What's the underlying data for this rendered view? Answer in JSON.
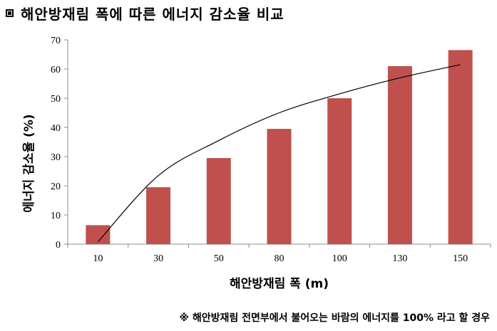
{
  "header": {
    "marker": "▣",
    "title": "해안방재림 폭에 따른 에너지 감소율 비교"
  },
  "chart_data": {
    "type": "bar",
    "title": "해안방재림 폭에 따른 에너지 감소율 비교",
    "xlabel": "해안방재림 폭 (m)",
    "ylabel": "에너지 감소율 (%)",
    "categories": [
      "10",
      "30",
      "50",
      "80",
      "100",
      "130",
      "150"
    ],
    "values": [
      6.5,
      19.5,
      29.5,
      39.5,
      50,
      61,
      66.5
    ],
    "ylim": [
      0,
      70
    ],
    "yticks": [
      0,
      10,
      20,
      30,
      40,
      50,
      60,
      70
    ],
    "grid": false,
    "legend": "none",
    "bar_color": "#c0504d",
    "trendline": {
      "type": "logarithmic",
      "values": [
        0.8,
        23.5,
        35.5,
        45,
        51.5,
        57,
        61.5
      ]
    }
  },
  "footnote": "※ 해안방재림 전면부에서 불어오는 바람의 에너지를 100% 라고 할 경우"
}
